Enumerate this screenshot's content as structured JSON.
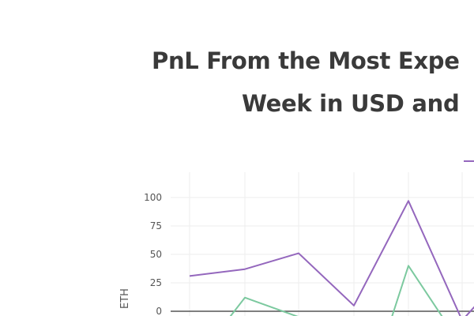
{
  "title": {
    "line1": "PnL From the Most Expe",
    "line2": "Week in USD and"
  },
  "chart_data": {
    "type": "line",
    "ylabel": "ETH",
    "ylim": [
      -5,
      115
    ],
    "yticks": [
      0,
      25,
      50,
      75,
      100
    ],
    "grid": true,
    "series": [
      {
        "color": "#9467bd",
        "points": [
          [
            240,
            31
          ],
          [
            310,
            37
          ],
          [
            378,
            51
          ],
          [
            448,
            5
          ],
          [
            517,
            97
          ],
          [
            585,
            -8
          ],
          [
            602,
            5
          ]
        ]
      },
      {
        "color": "#7cc99f",
        "points": [
          [
            291,
            -5
          ],
          [
            310,
            12
          ],
          [
            378,
            -5
          ],
          [
            378,
            -5
          ]
        ]
      },
      {
        "color": "#7cc99f",
        "points": [
          [
            496,
            -5
          ],
          [
            517,
            40
          ],
          [
            560,
            -5
          ]
        ]
      }
    ],
    "legend_color": "#9467bd"
  }
}
